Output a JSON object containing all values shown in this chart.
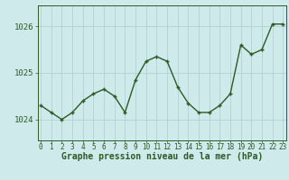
{
  "x": [
    0,
    1,
    2,
    3,
    4,
    5,
    6,
    7,
    8,
    9,
    10,
    11,
    12,
    13,
    14,
    15,
    16,
    17,
    18,
    19,
    20,
    21,
    22,
    23
  ],
  "y": [
    1024.3,
    1024.15,
    1024.0,
    1024.15,
    1024.4,
    1024.55,
    1024.65,
    1024.5,
    1024.15,
    1024.85,
    1025.25,
    1025.35,
    1025.25,
    1024.7,
    1024.35,
    1024.15,
    1024.15,
    1024.3,
    1024.55,
    1025.6,
    1025.4,
    1025.5,
    1026.05,
    1026.05
  ],
  "line_color": "#2d5a27",
  "marker_color": "#2d5a27",
  "bg_color": "#ceeaea",
  "grid_color": "#aacece",
  "xlabel": "Graphe pression niveau de la mer (hPa)",
  "ylabel_ticks": [
    1024,
    1025,
    1026
  ],
  "xlim": [
    -0.3,
    23.3
  ],
  "ylim": [
    1023.55,
    1026.45
  ],
  "tick_color": "#2d5a27",
  "label_color": "#2d5a27",
  "xlabel_fontsize": 7,
  "ytick_fontsize": 6.5,
  "xtick_fontsize": 5.5,
  "linewidth": 1.0,
  "markersize": 3.0
}
